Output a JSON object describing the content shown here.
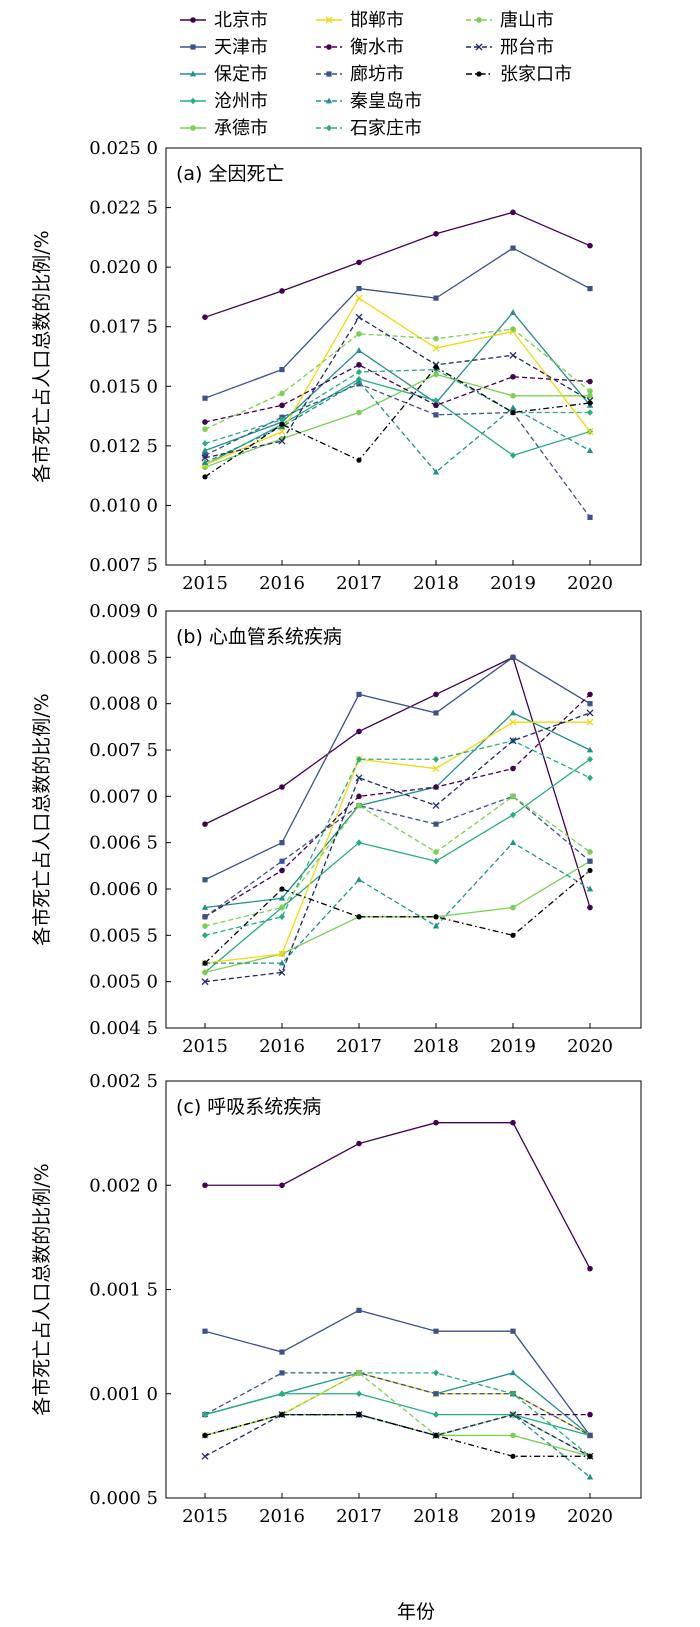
{
  "legend": {
    "columns": [
      [
        "北京市",
        "天津市",
        "保定市",
        "沧州市",
        "承德市"
      ],
      [
        "邯郸市",
        "衡水市",
        "廊坊市",
        "秦皇岛市",
        "石家庄市"
      ],
      [
        "唐山市",
        "邢台市",
        "张家口市"
      ]
    ]
  },
  "x_axis_label": "年份",
  "series_styles": {
    "北京市": {
      "color": "#440154",
      "dash": "solid",
      "marker": "circle"
    },
    "天津市": {
      "color": "#3b528b",
      "dash": "solid",
      "marker": "square"
    },
    "保定市": {
      "color": "#21908d",
      "dash": "solid",
      "marker": "triangle"
    },
    "沧州市": {
      "color": "#27ad81",
      "dash": "solid",
      "marker": "diamond"
    },
    "承德市": {
      "color": "#7ad151",
      "dash": "solid",
      "marker": "circle"
    },
    "邯郸市": {
      "color": "#f5d90a",
      "dash": "solid",
      "marker": "x"
    },
    "衡水市": {
      "color": "#440154",
      "dash": "dashed",
      "marker": "circle"
    },
    "廊坊市": {
      "color": "#3b528b",
      "dash": "dashed",
      "marker": "square"
    },
    "秦皇岛市": {
      "color": "#21908d",
      "dash": "dashed",
      "marker": "triangle"
    },
    "石家庄市": {
      "color": "#27ad81",
      "dash": "dashed",
      "marker": "diamond"
    },
    "唐山市": {
      "color": "#7ad151",
      "dash": "dashed",
      "marker": "circle"
    },
    "邢台市": {
      "color": "#1f2a6b",
      "dash": "dashed",
      "marker": "x"
    },
    "张家口市": {
      "color": "#000000",
      "dash": "dashdot",
      "marker": "dot"
    }
  },
  "chart_data": [
    {
      "type": "line",
      "title": "(a) 全因死亡",
      "xlabel": "",
      "ylabel": "各市死亡占人口总数的比例/%",
      "x": [
        2015,
        2016,
        2017,
        2018,
        2019,
        2020
      ],
      "ylim": [
        0.0075,
        0.025
      ],
      "yticks": [
        "0.007 5",
        "0.010 0",
        "0.012 5",
        "0.015 0",
        "0.017 5",
        "0.020 0",
        "0.022 5",
        "0.025 0"
      ],
      "ytick_values": [
        0.0075,
        0.01,
        0.0125,
        0.015,
        0.0175,
        0.02,
        0.0225,
        0.025
      ],
      "series": [
        {
          "name": "北京市",
          "values": [
            0.0179,
            0.019,
            0.0202,
            0.0214,
            0.0223,
            0.0209
          ]
        },
        {
          "name": "天津市",
          "values": [
            0.0145,
            0.0157,
            0.0191,
            0.0187,
            0.0208,
            0.0191
          ]
        },
        {
          "name": "保定市",
          "values": [
            0.0123,
            0.0135,
            0.0165,
            0.0143,
            0.0181,
            0.0142
          ]
        },
        {
          "name": "沧州市",
          "values": [
            0.0117,
            0.0134,
            0.0153,
            0.0144,
            0.0121,
            0.0131
          ]
        },
        {
          "name": "承德市",
          "values": [
            0.0116,
            0.0128,
            0.0139,
            0.0155,
            0.0146,
            0.0146
          ]
        },
        {
          "name": "邯郸市",
          "values": [
            0.0117,
            0.0131,
            0.0187,
            0.0166,
            0.0173,
            0.0131
          ]
        },
        {
          "name": "衡水市",
          "values": [
            0.0135,
            0.0142,
            0.0159,
            0.0142,
            0.0154,
            0.0152
          ]
        },
        {
          "name": "廊坊市",
          "values": [
            0.0121,
            0.0137,
            0.0151,
            0.0138,
            0.0139,
            0.0095
          ]
        },
        {
          "name": "秦皇岛市",
          "values": [
            0.0118,
            0.0133,
            0.0152,
            0.0114,
            0.0141,
            0.0123
          ]
        },
        {
          "name": "石家庄市",
          "values": [
            0.0126,
            0.0136,
            0.0156,
            0.0157,
            0.0139,
            0.0139
          ]
        },
        {
          "name": "唐山市",
          "values": [
            0.0132,
            0.0147,
            0.0172,
            0.017,
            0.0174,
            0.0148
          ]
        },
        {
          "name": "邢台市",
          "values": [
            0.012,
            0.0127,
            0.0179,
            0.0159,
            0.0163,
            0.0144
          ]
        },
        {
          "name": "张家口市",
          "values": [
            0.0112,
            0.0134,
            0.0119,
            0.0158,
            0.0139,
            0.0143
          ]
        }
      ]
    },
    {
      "type": "line",
      "title": "(b) 心血管系统疾病",
      "xlabel": "",
      "ylabel": "各市死亡占人口总数的比例/%",
      "x": [
        2015,
        2016,
        2017,
        2018,
        2019,
        2020
      ],
      "ylim": [
        0.0045,
        0.009
      ],
      "yticks": [
        "0.004 5",
        "0.005 0",
        "0.005 5",
        "0.006 0",
        "0.006 5",
        "0.007 0",
        "0.007 5",
        "0.008 0",
        "0.008 5",
        "0.009 0"
      ],
      "ytick_values": [
        0.0045,
        0.005,
        0.0055,
        0.006,
        0.0065,
        0.007,
        0.0075,
        0.008,
        0.0085,
        0.009
      ],
      "series": [
        {
          "name": "北京市",
          "values": [
            0.0067,
            0.0071,
            0.0077,
            0.0081,
            0.0085,
            0.0058
          ]
        },
        {
          "name": "天津市",
          "values": [
            0.0061,
            0.0065,
            0.0081,
            0.0079,
            0.0085,
            0.008
          ]
        },
        {
          "name": "保定市",
          "values": [
            0.0058,
            0.0059,
            0.0069,
            0.0071,
            0.0079,
            0.0075
          ]
        },
        {
          "name": "沧州市",
          "values": [
            0.0051,
            0.0058,
            0.0065,
            0.0063,
            0.0068,
            0.0074
          ]
        },
        {
          "name": "承德市",
          "values": [
            0.0051,
            0.0053,
            0.0057,
            0.0057,
            0.0058,
            0.0063
          ]
        },
        {
          "name": "邯郸市",
          "values": [
            0.0052,
            0.0053,
            0.0074,
            0.0073,
            0.0078,
            0.0078
          ]
        },
        {
          "name": "衡水市",
          "values": [
            0.0057,
            0.0062,
            0.007,
            0.0071,
            0.0073,
            0.0081
          ]
        },
        {
          "name": "廊坊市",
          "values": [
            0.0057,
            0.0063,
            0.0069,
            0.0067,
            0.007,
            0.0063
          ]
        },
        {
          "name": "秦皇岛市",
          "values": [
            0.0052,
            0.0052,
            0.0061,
            0.0056,
            0.0065,
            0.006
          ]
        },
        {
          "name": "石家庄市",
          "values": [
            0.0055,
            0.0057,
            0.0074,
            0.0074,
            0.0076,
            0.0072
          ]
        },
        {
          "name": "唐山市",
          "values": [
            0.0056,
            0.0058,
            0.0069,
            0.0064,
            0.007,
            0.0064
          ]
        },
        {
          "name": "邢台市",
          "values": [
            0.005,
            0.0051,
            0.0072,
            0.0069,
            0.0076,
            0.0079
          ]
        },
        {
          "name": "张家口市",
          "values": [
            0.0052,
            0.006,
            0.0057,
            0.0057,
            0.0055,
            0.0062
          ]
        }
      ]
    },
    {
      "type": "line",
      "title": "(c) 呼吸系统疾病",
      "xlabel": "年份",
      "ylabel": "各市死亡占人口总数的比例/%",
      "x": [
        2015,
        2016,
        2017,
        2018,
        2019,
        2020
      ],
      "ylim": [
        0.0005,
        0.0025
      ],
      "yticks": [
        "0.000 5",
        "0.001 0",
        "0.001 5",
        "0.002 0",
        "0.002 5"
      ],
      "ytick_values": [
        0.0005,
        0.001,
        0.0015,
        0.002,
        0.0025
      ],
      "series": [
        {
          "name": "北京市",
          "values": [
            0.002,
            0.002,
            0.0022,
            0.0023,
            0.0023,
            0.0016
          ]
        },
        {
          "name": "天津市",
          "values": [
            0.0013,
            0.0012,
            0.0014,
            0.0013,
            0.0013,
            0.0008
          ]
        },
        {
          "name": "保定市",
          "values": [
            0.0009,
            0.001,
            0.0011,
            0.001,
            0.0011,
            0.0008
          ]
        },
        {
          "name": "沧州市",
          "values": [
            0.0009,
            0.001,
            0.001,
            0.0009,
            0.0009,
            0.0008
          ]
        },
        {
          "name": "承德市",
          "values": [
            0.0008,
            0.0009,
            0.0009,
            0.0008,
            0.0008,
            0.0007
          ]
        },
        {
          "name": "邯郸市",
          "values": [
            0.0008,
            0.0009,
            0.0011,
            0.001,
            0.001,
            0.0008
          ]
        },
        {
          "name": "衡水市",
          "values": [
            0.0008,
            0.0009,
            0.0009,
            0.0008,
            0.0009,
            0.0009
          ]
        },
        {
          "name": "廊坊市",
          "values": [
            0.0009,
            0.0011,
            0.0011,
            0.001,
            0.001,
            0.0008
          ]
        },
        {
          "name": "秦皇岛市",
          "values": [
            0.0008,
            0.0009,
            0.0009,
            0.0008,
            0.0009,
            0.0006
          ]
        },
        {
          "name": "石家庄市",
          "values": [
            0.0009,
            0.001,
            0.0011,
            0.0011,
            0.001,
            0.0007
          ]
        },
        {
          "name": "唐山市",
          "values": [
            0.0008,
            0.0009,
            0.0011,
            0.0008,
            0.0009,
            0.0007
          ]
        },
        {
          "name": "邢台市",
          "values": [
            0.0007,
            0.0009,
            0.0009,
            0.0008,
            0.0009,
            0.0007
          ]
        },
        {
          "name": "张家口市",
          "values": [
            0.0008,
            0.0009,
            0.0009,
            0.0008,
            0.0007,
            0.0007
          ]
        }
      ]
    }
  ]
}
